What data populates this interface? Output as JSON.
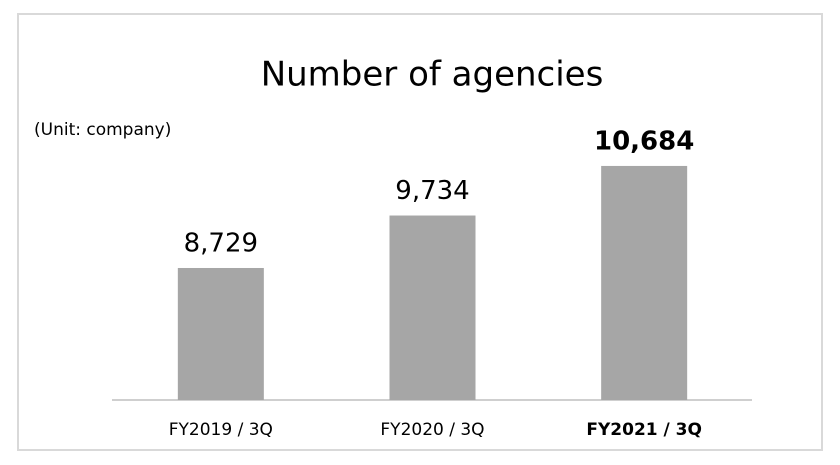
{
  "chart_data": {
    "type": "bar",
    "title": "Number of agencies",
    "subtitle": "(Unit: company)",
    "categories": [
      "FY2019 / 3Q",
      "FY2020 / 3Q",
      "FY2021 / 3Q"
    ],
    "values": [
      8729,
      9734,
      10684
    ],
    "value_labels": [
      "8,729",
      "9,734",
      "10,684"
    ],
    "color": "#a6a6a6",
    "ylim": [
      6200,
      11200
    ],
    "highlight_index": 2
  }
}
